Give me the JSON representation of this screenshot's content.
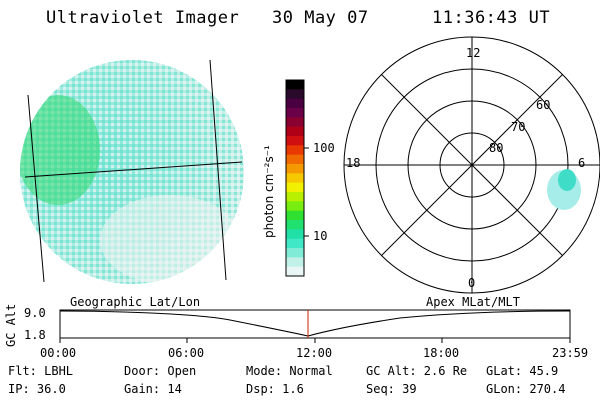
{
  "header": {
    "instrument": "Ultraviolet Imager",
    "date": "30 May 07",
    "time": "11:36:43 UT"
  },
  "colorbar": {
    "unit_label": "photon cm⁻²s⁻¹",
    "ticks": [
      "100",
      "10"
    ],
    "colors": [
      "#000000",
      "#2a0a2a",
      "#4a0040",
      "#6a0048",
      "#8a0030",
      "#b00018",
      "#d01010",
      "#e83a00",
      "#f06a00",
      "#f49a00",
      "#f6c800",
      "#f0f000",
      "#b8f000",
      "#78ee10",
      "#30e030",
      "#20e070",
      "#20e0a8",
      "#40e8c8",
      "#80ecd8",
      "#c0f0e8",
      "#eaf6f4"
    ]
  },
  "polar": {
    "mlt_labels": [
      "12",
      "18",
      "6",
      "0"
    ],
    "lat_labels": [
      "60",
      "70",
      "80"
    ]
  },
  "panels": {
    "left_label": "Geographic Lat/Lon",
    "right_label": "Apex MLat/MLT"
  },
  "altitude_plot": {
    "ylabel": "GC Alt",
    "yticks": [
      "9.0",
      "1.8"
    ],
    "xticks": [
      "00:00",
      "06:00",
      "12:00",
      "18:00",
      "23:59"
    ],
    "marker_color": "#cc2200"
  },
  "info": {
    "flt": "Flt: LBHL",
    "door": "Door: Open",
    "mode": "Mode: Normal",
    "gc_alt": "GC Alt: 2.6 Re",
    "glat": "GLat:  45.9",
    "ip": "IP: 36.0",
    "gain": "Gain: 14",
    "dsp": "Dsp:    1.6",
    "seq": "Seq: 39",
    "glon": "GLon: 270.4"
  }
}
